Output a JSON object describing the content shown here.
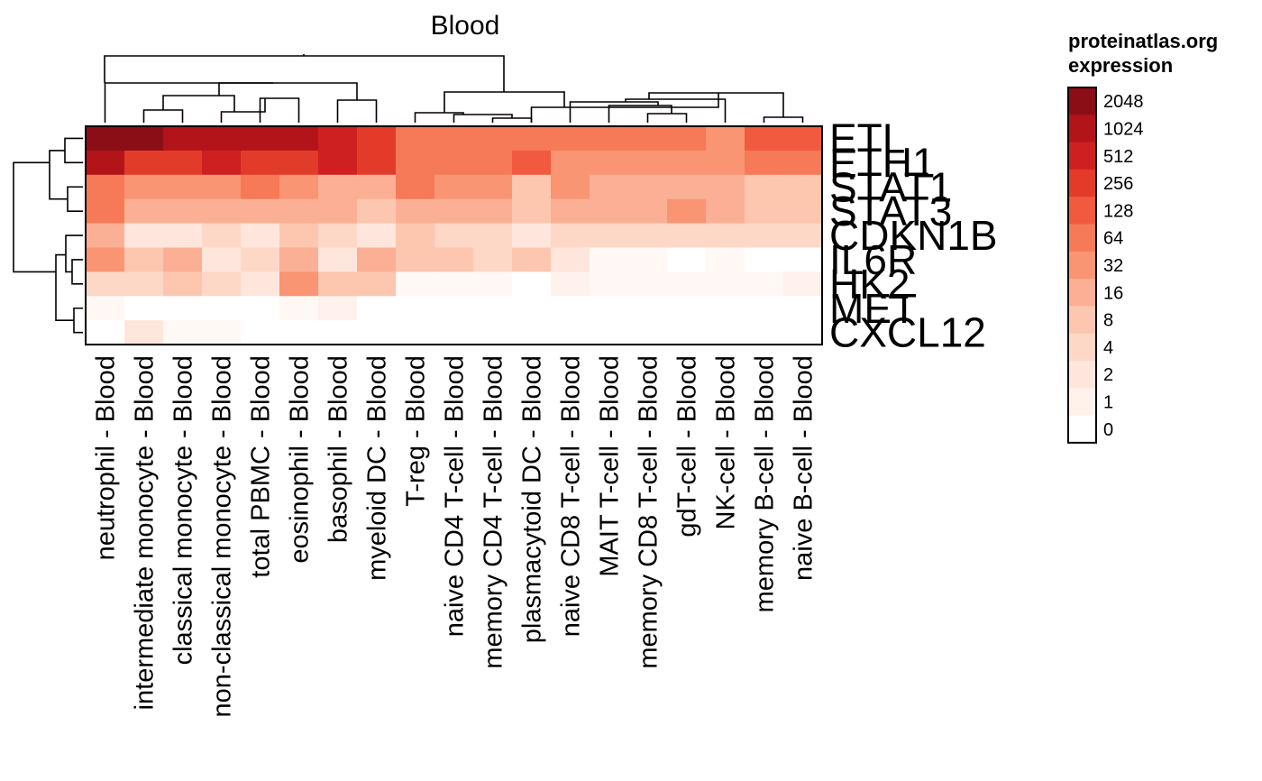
{
  "chart_data": {
    "type": "heatmap",
    "title": "Blood",
    "columns": [
      "neutrophil - Blood",
      "intermediate monocyte - Blood",
      "classical monocyte - Blood",
      "non-classical monocyte - Blood",
      "total PBMC - Blood",
      "eosinophil - Blood",
      "basophil - Blood",
      "myeloid DC - Blood",
      "T-reg - Blood",
      "naive CD4 T-cell - Blood",
      "memory CD4 T-cell - Blood",
      "plasmacytoid DC - Blood",
      "naive CD8 T-cell - Blood",
      "MAIT T-cell - Blood",
      "memory CD8 T-cell - Blood",
      "gdT-cell - Blood",
      "NK-cell - Blood",
      "memory B-cell - Blood",
      "naive B-cell - Blood"
    ],
    "rows": [
      "ETL",
      "ETH1",
      "STAT1",
      "STAT3",
      "CDKN1B",
      "IL6R",
      "HK2",
      "MET",
      "CXCL12"
    ],
    "values": [
      [
        3000,
        1500,
        1100,
        1300,
        900,
        800,
        500,
        220,
        80,
        80,
        70,
        90,
        70,
        65,
        60,
        55,
        40,
        160,
        120
      ],
      [
        800,
        350,
        300,
        400,
        250,
        220,
        500,
        200,
        60,
        50,
        60,
        150,
        35,
        35,
        35,
        35,
        30,
        90,
        80
      ],
      [
        50,
        45,
        35,
        30,
        50,
        25,
        15,
        20,
        55,
        35,
        30,
        6,
        25,
        18,
        18,
        12,
        22,
        10,
        6
      ],
      [
        90,
        15,
        15,
        15,
        20,
        16,
        18,
        10,
        12,
        18,
        15,
        6,
        15,
        15,
        15,
        25,
        12,
        10,
        8
      ],
      [
        20,
        2,
        2,
        4,
        2,
        7,
        3,
        2,
        10,
        5,
        4,
        2,
        4,
        3,
        3,
        3,
        3,
        3,
        3
      ],
      [
        40,
        6,
        12,
        2,
        4,
        12,
        1.5,
        15,
        8,
        6,
        5,
        6,
        1.5,
        0.3,
        0.3,
        0.1,
        0.3,
        0.2,
        0.1
      ],
      [
        5,
        5,
        6,
        3,
        2,
        30,
        6,
        8,
        0.5,
        0.5,
        0.5,
        0.1,
        0.8,
        0.3,
        0.3,
        0.3,
        0.3,
        0.5,
        0.8
      ],
      [
        0.5,
        0.1,
        0.2,
        0.2,
        0.1,
        0.3,
        0.8,
        0.1,
        0.1,
        0.1,
        0.1,
        0.1,
        0.1,
        0.1,
        0.1,
        0.2,
        0.1,
        0.1,
        0.1
      ],
      [
        0.1,
        2,
        0.3,
        0.5,
        0.1,
        0.1,
        0.1,
        0.1,
        0.1,
        0.1,
        0.2,
        0.1,
        0.1,
        0.1,
        0.1,
        0.1,
        0.1,
        0.1,
        0.1
      ]
    ],
    "legend": {
      "title_line1": "proteinatlas.org",
      "title_line2": "expression",
      "levels": [
        "2048",
        "1024",
        "512",
        "256",
        "128",
        "64",
        "32",
        "16",
        "8",
        "4",
        "2",
        "1",
        "0"
      ],
      "colors": [
        "#8b0e16",
        "#b31419",
        "#cf2021",
        "#e33b2a",
        "#f15a3f",
        "#f67a57",
        "#f99572",
        "#fbb096",
        "#fcc6af",
        "#fdd8c6",
        "#fee6dc",
        "#fff1ec",
        "#ffffff"
      ]
    },
    "dendrogram": {
      "column_order": [
        0,
        1,
        2,
        3,
        4,
        5,
        6,
        7,
        8,
        9,
        10,
        11,
        12,
        13,
        14,
        15,
        16,
        17,
        18
      ],
      "row_order": [
        0,
        1,
        2,
        3,
        4,
        5,
        6,
        7,
        8
      ]
    }
  }
}
